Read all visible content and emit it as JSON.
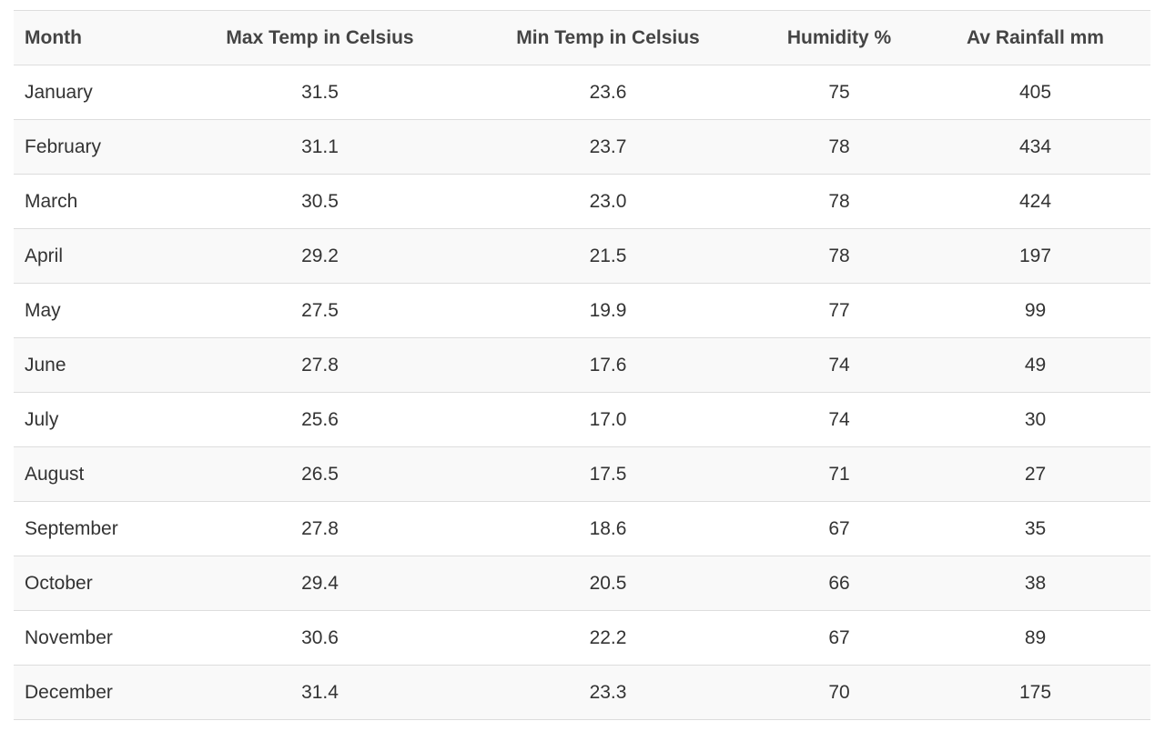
{
  "table": {
    "headers": {
      "month": "Month",
      "max_temp": "Max Temp in Celsius",
      "min_temp": "Min Temp in Celsius",
      "humidity": "Humidity %",
      "rainfall": "Av Rainfall mm"
    },
    "rows": [
      {
        "month": "January",
        "max_temp": "31.5",
        "min_temp": "23.6",
        "humidity": "75",
        "rainfall": "405"
      },
      {
        "month": "February",
        "max_temp": "31.1",
        "min_temp": "23.7",
        "humidity": "78",
        "rainfall": "434"
      },
      {
        "month": "March",
        "max_temp": "30.5",
        "min_temp": "23.0",
        "humidity": "78",
        "rainfall": "424"
      },
      {
        "month": "April",
        "max_temp": "29.2",
        "min_temp": "21.5",
        "humidity": "78",
        "rainfall": "197"
      },
      {
        "month": "May",
        "max_temp": "27.5",
        "min_temp": "19.9",
        "humidity": "77",
        "rainfall": "99"
      },
      {
        "month": "June",
        "max_temp": "27.8",
        "min_temp": "17.6",
        "humidity": "74",
        "rainfall": "49"
      },
      {
        "month": "July",
        "max_temp": "25.6",
        "min_temp": "17.0",
        "humidity": "74",
        "rainfall": "30"
      },
      {
        "month": "August",
        "max_temp": "26.5",
        "min_temp": "17.5",
        "humidity": "71",
        "rainfall": "27"
      },
      {
        "month": "September",
        "max_temp": "27.8",
        "min_temp": "18.6",
        "humidity": "67",
        "rainfall": "35"
      },
      {
        "month": "October",
        "max_temp": "29.4",
        "min_temp": "20.5",
        "humidity": "66",
        "rainfall": "38"
      },
      {
        "month": "November",
        "max_temp": "30.6",
        "min_temp": "22.2",
        "humidity": "67",
        "rainfall": "89"
      },
      {
        "month": "December",
        "max_temp": "31.4",
        "min_temp": "23.3",
        "humidity": "70",
        "rainfall": "175"
      }
    ]
  }
}
